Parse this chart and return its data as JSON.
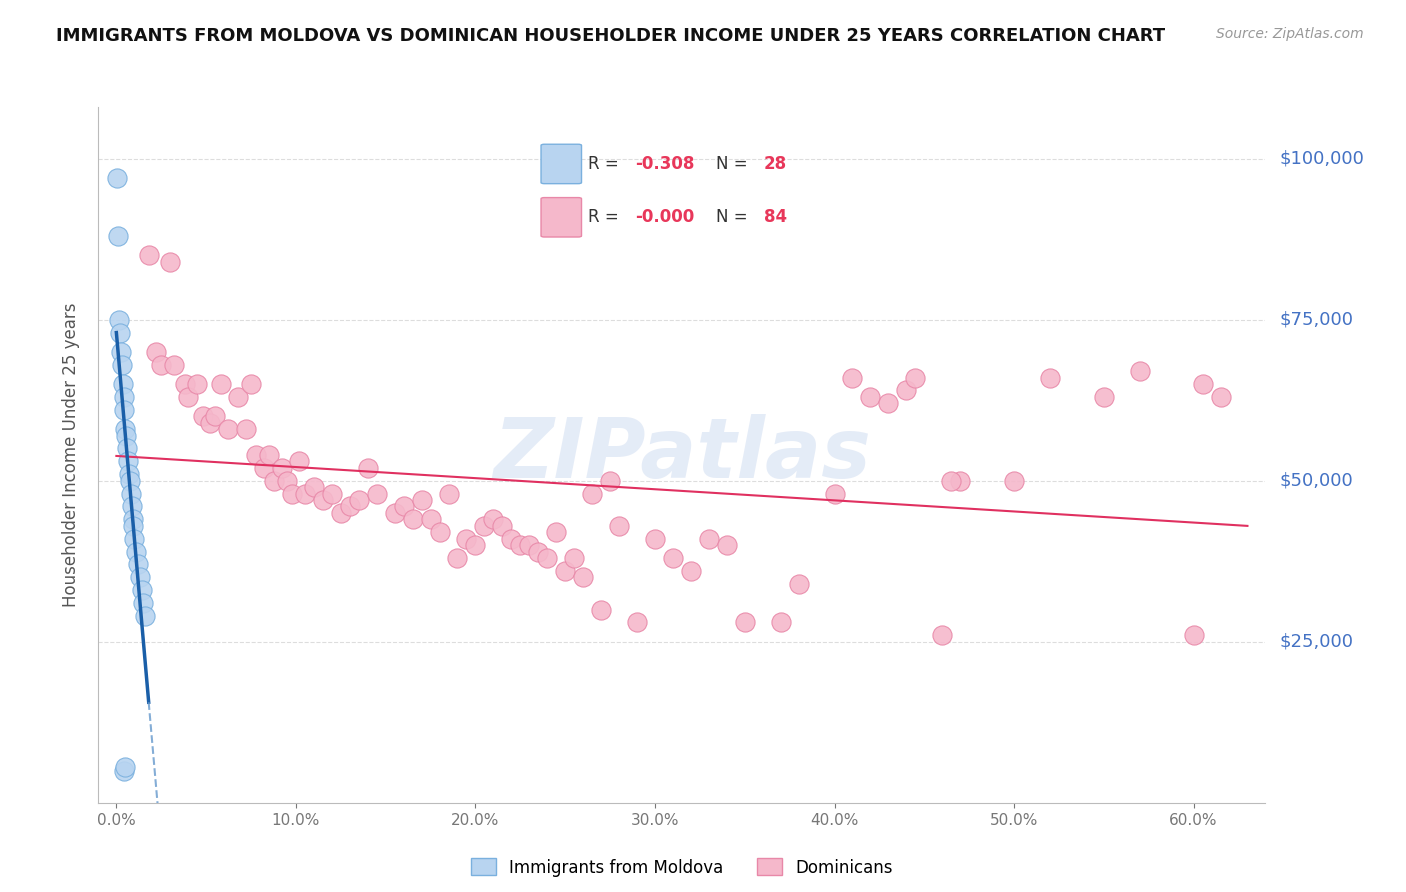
{
  "title": "IMMIGRANTS FROM MOLDOVA VS DOMINICAN HOUSEHOLDER INCOME UNDER 25 YEARS CORRELATION CHART",
  "source": "Source: ZipAtlas.com",
  "ylabel": "Householder Income Under 25 years",
  "ytick_labels": [
    "$25,000",
    "$50,000",
    "$75,000",
    "$100,000"
  ],
  "ytick_vals": [
    25000,
    50000,
    75000,
    100000
  ],
  "xtick_labels": [
    "0.0%",
    "10.0%",
    "20.0%",
    "30.0%",
    "40.0%",
    "50.0%",
    "60.0%"
  ],
  "xtick_vals": [
    0,
    10,
    20,
    30,
    40,
    50,
    60
  ],
  "ymin": 0,
  "ymax": 108000,
  "xmin": -1,
  "xmax": 64,
  "moldova_R": "-0.308",
  "moldova_N": "28",
  "dominican_R": "-0.000",
  "dominican_N": "84",
  "moldova_scatter_face": "#b8d4f0",
  "moldova_scatter_edge": "#7ab0de",
  "dominican_scatter_face": "#f5b8cb",
  "dominican_scatter_edge": "#e888a8",
  "trend_moldova_solid_color": "#1a5fa8",
  "trend_moldova_dashed_color": "#6699cc",
  "trend_dominican_color": "#e03060",
  "watermark_color": "#c5d5ee",
  "title_color": "#111111",
  "source_color": "#999999",
  "ylabel_color": "#555555",
  "tick_color": "#777777",
  "right_tick_color": "#4472c4",
  "grid_color": "#dddddd",
  "legend_text_color": "#333333",
  "legend_value_color": "#e8375a",
  "moldova_x": [
    0.05,
    0.1,
    0.15,
    0.2,
    0.25,
    0.3,
    0.35,
    0.4,
    0.45,
    0.5,
    0.55,
    0.6,
    0.65,
    0.7,
    0.75,
    0.8,
    0.85,
    0.9,
    0.95,
    1.0,
    1.1,
    1.2,
    1.3,
    1.4,
    1.5,
    1.6,
    0.45,
    0.5
  ],
  "moldova_y": [
    97000,
    88000,
    75000,
    73000,
    70000,
    68000,
    65000,
    63000,
    61000,
    58000,
    57000,
    55000,
    53000,
    51000,
    50000,
    48000,
    46000,
    44000,
    43000,
    41000,
    39000,
    37000,
    35000,
    33000,
    31000,
    29000,
    5000,
    5500
  ],
  "dominican_x": [
    1.8,
    2.2,
    2.5,
    3.0,
    3.2,
    3.8,
    4.0,
    4.5,
    4.8,
    5.2,
    5.5,
    5.8,
    6.2,
    6.8,
    7.2,
    7.5,
    7.8,
    8.2,
    8.5,
    8.8,
    9.2,
    9.5,
    9.8,
    10.2,
    10.5,
    11.0,
    11.5,
    12.0,
    12.5,
    13.0,
    13.5,
    14.0,
    14.5,
    15.5,
    16.0,
    16.5,
    17.0,
    17.5,
    18.0,
    18.5,
    19.0,
    19.5,
    20.0,
    20.5,
    21.0,
    21.5,
    22.0,
    22.5,
    23.0,
    23.5,
    24.0,
    24.5,
    25.0,
    25.5,
    26.0,
    27.0,
    28.0,
    29.0,
    30.0,
    31.0,
    32.0,
    33.0,
    34.0,
    35.0,
    37.0,
    38.0,
    40.0,
    41.0,
    42.0,
    43.0,
    44.0,
    46.0,
    47.0,
    50.0,
    52.0,
    55.0,
    57.0,
    60.0,
    60.5,
    61.5,
    27.5,
    44.5,
    46.5,
    26.5
  ],
  "dominican_y": [
    85000,
    70000,
    68000,
    84000,
    68000,
    65000,
    63000,
    65000,
    60000,
    59000,
    60000,
    65000,
    58000,
    63000,
    58000,
    65000,
    54000,
    52000,
    54000,
    50000,
    52000,
    50000,
    48000,
    53000,
    48000,
    49000,
    47000,
    48000,
    45000,
    46000,
    47000,
    52000,
    48000,
    45000,
    46000,
    44000,
    47000,
    44000,
    42000,
    48000,
    38000,
    41000,
    40000,
    43000,
    44000,
    43000,
    41000,
    40000,
    40000,
    39000,
    38000,
    42000,
    36000,
    38000,
    35000,
    30000,
    43000,
    28000,
    41000,
    38000,
    36000,
    41000,
    40000,
    28000,
    28000,
    34000,
    48000,
    66000,
    63000,
    62000,
    64000,
    26000,
    50000,
    50000,
    66000,
    63000,
    67000,
    26000,
    65000,
    63000,
    50000,
    66000,
    50000,
    48000
  ]
}
